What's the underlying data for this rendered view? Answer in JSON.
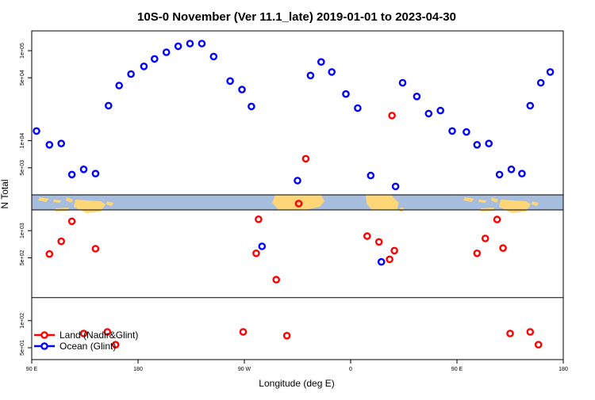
{
  "chart_data": {
    "type": "scatter",
    "title": "10S-0 November (Ver 11.1_late)   2019-01-01 to 2023-04-30",
    "xlabel": "Longitude (deg E)",
    "ylabel": "N Total",
    "x_ticks": [
      "90 E",
      "180",
      "90 W",
      "0",
      "90 E",
      "180"
    ],
    "x_tick_values": [
      90,
      180,
      270,
      360,
      450,
      540
    ],
    "xlim": [
      90,
      540
    ],
    "x_unwrapped_longitude": true,
    "y_ticks": [
      "5e+01",
      "1e+02",
      "5e+02",
      "1e+03",
      "5e+03",
      "1e+04",
      "5e+04",
      "1e+05"
    ],
    "y_tick_values": [
      50,
      100,
      500,
      1000,
      5000,
      10000,
      50000,
      100000
    ],
    "y_scale": "log",
    "ylim": [
      40,
      200000
    ],
    "grid": false,
    "legend": {
      "placement": "bottom-left",
      "entries": [
        {
          "label": "Land (Nadir&Glint)",
          "color": "#ff0000"
        },
        {
          "label": "Ocean (Glint)",
          "color": "#0000ff"
        }
      ]
    },
    "map_strip": {
      "ocean_color": "#a7bddd",
      "land_color": "#fcd677",
      "y_range": [
        2500,
        1700
      ]
    },
    "series": [
      {
        "name": "Land (Nadir&Glint)",
        "color": "#ff0000",
        "points": [
          [
            105,
            550
          ],
          [
            115,
            760
          ],
          [
            124,
            1270
          ],
          [
            134,
            72
          ],
          [
            144,
            630
          ],
          [
            154,
            75
          ],
          [
            161,
            54
          ],
          [
            269,
            75
          ],
          [
            280,
            560
          ],
          [
            282,
            1340
          ],
          [
            297,
            285
          ],
          [
            306,
            68
          ],
          [
            316,
            2000
          ],
          [
            322,
            6300
          ],
          [
            374,
            870
          ],
          [
            384,
            750
          ],
          [
            393,
            480
          ],
          [
            395,
            19000
          ],
          [
            397,
            600
          ],
          [
            467,
            560
          ],
          [
            474,
            820
          ],
          [
            484,
            1330
          ],
          [
            489,
            640
          ],
          [
            495,
            72
          ],
          [
            512,
            75
          ],
          [
            519,
            54
          ]
        ]
      },
      {
        "name": "Ocean (Glint)",
        "color": "#0000ff",
        "points": [
          [
            94,
            12800
          ],
          [
            105,
            9000
          ],
          [
            115,
            9300
          ],
          [
            124,
            4200
          ],
          [
            134,
            4800
          ],
          [
            144,
            4300
          ],
          [
            155,
            24500
          ],
          [
            164,
            41000
          ],
          [
            174,
            55000
          ],
          [
            185,
            67000
          ],
          [
            194,
            81000
          ],
          [
            204,
            96000
          ],
          [
            214,
            112000
          ],
          [
            224,
            120000
          ],
          [
            234,
            120000
          ],
          [
            244,
            86000
          ],
          [
            258,
            46000
          ],
          [
            268,
            37000
          ],
          [
            276,
            24000
          ],
          [
            285,
            670
          ],
          [
            315,
            3600
          ],
          [
            326,
            53000
          ],
          [
            335,
            75000
          ],
          [
            344,
            58000
          ],
          [
            356,
            33000
          ],
          [
            366,
            23000
          ],
          [
            377,
            4100
          ],
          [
            398,
            3100
          ],
          [
            386,
            450
          ],
          [
            404,
            44000
          ],
          [
            416,
            31000
          ],
          [
            426,
            20000
          ],
          [
            436,
            21600
          ],
          [
            446,
            12800
          ],
          [
            458,
            12500
          ],
          [
            467,
            9000
          ],
          [
            477,
            9300
          ],
          [
            486,
            4200
          ],
          [
            496,
            4800
          ],
          [
            505,
            4300
          ],
          [
            512,
            24500
          ],
          [
            521,
            44000
          ],
          [
            529,
            58000
          ]
        ]
      }
    ]
  }
}
